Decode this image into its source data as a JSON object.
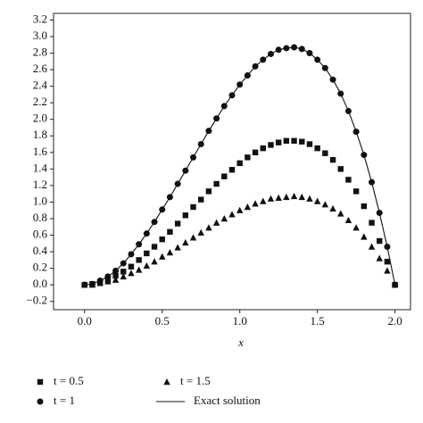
{
  "chart_data": {
    "type": "line",
    "x_label": "x",
    "x": [
      0,
      0.05,
      0.1,
      0.15,
      0.2,
      0.25,
      0.3,
      0.35,
      0.4,
      0.45,
      0.5,
      0.55,
      0.6,
      0.65,
      0.7,
      0.75,
      0.8,
      0.85,
      0.9,
      0.95,
      1.0,
      1.05,
      1.1,
      1.15,
      1.2,
      1.25,
      1.3,
      1.35,
      1.4,
      1.45,
      1.5,
      1.55,
      1.6,
      1.65,
      1.7,
      1.75,
      1.8,
      1.85,
      1.9,
      1.95,
      2.0
    ],
    "series": [
      {
        "name": "t = 0.5",
        "color": "#111111",
        "marker": "square",
        "values": [
          0,
          0.01,
          0.03,
          0.06,
          0.11,
          0.16,
          0.22,
          0.3,
          0.38,
          0.46,
          0.55,
          0.64,
          0.74,
          0.84,
          0.94,
          1.03,
          1.13,
          1.22,
          1.31,
          1.39,
          1.47,
          1.54,
          1.6,
          1.65,
          1.69,
          1.72,
          1.74,
          1.74,
          1.73,
          1.7,
          1.65,
          1.59,
          1.51,
          1.4,
          1.27,
          1.13,
          0.95,
          0.75,
          0.53,
          0.28,
          0
        ]
      },
      {
        "name": "t = 1",
        "color": "#111111",
        "marker": "circle",
        "values": [
          0,
          0.01,
          0.05,
          0.1,
          0.17,
          0.26,
          0.37,
          0.49,
          0.62,
          0.76,
          0.91,
          1.06,
          1.22,
          1.38,
          1.54,
          1.7,
          1.86,
          2.01,
          2.16,
          2.29,
          2.42,
          2.53,
          2.64,
          2.72,
          2.79,
          2.84,
          2.86,
          2.87,
          2.85,
          2.8,
          2.72,
          2.62,
          2.48,
          2.31,
          2.1,
          1.85,
          1.57,
          1.24,
          0.87,
          0.46,
          0
        ]
      },
      {
        "name": "t = 1.5",
        "color": "#111111",
        "marker": "triangle",
        "values": [
          0,
          0.0,
          0.02,
          0.04,
          0.06,
          0.1,
          0.14,
          0.18,
          0.23,
          0.28,
          0.34,
          0.39,
          0.45,
          0.51,
          0.57,
          0.63,
          0.69,
          0.75,
          0.8,
          0.85,
          0.9,
          0.94,
          0.98,
          1.01,
          1.04,
          1.05,
          1.06,
          1.07,
          1.06,
          1.04,
          1.01,
          0.97,
          0.92,
          0.86,
          0.78,
          0.69,
          0.58,
          0.46,
          0.32,
          0.17,
          0
        ]
      },
      {
        "name": "Exact solution",
        "color": "#111111",
        "values": [
          0,
          0.01,
          0.05,
          0.1,
          0.17,
          0.26,
          0.37,
          0.49,
          0.62,
          0.76,
          0.91,
          1.06,
          1.22,
          1.38,
          1.54,
          1.7,
          1.86,
          2.01,
          2.16,
          2.29,
          2.42,
          2.53,
          2.64,
          2.72,
          2.79,
          2.84,
          2.86,
          2.87,
          2.85,
          2.8,
          2.72,
          2.62,
          2.48,
          2.31,
          2.1,
          1.85,
          1.57,
          1.24,
          0.87,
          0.46,
          0
        ]
      }
    ],
    "xlim": [
      -0.2,
      2.1
    ],
    "xticks": [
      {
        "value": 0,
        "label": "0.0"
      },
      0.5,
      {
        "value": 1,
        "label": "1.0"
      },
      1.5,
      {
        "value": 2,
        "label": "2.0"
      }
    ],
    "ylim": [
      -0.3,
      3.28
    ],
    "yticks": [
      {
        "value": -0.2,
        "label": "−0.2"
      },
      {
        "value": 0,
        "label": "0.0"
      },
      0.2,
      0.4,
      0.6,
      0.8,
      {
        "value": 1,
        "label": "1.0"
      },
      1.2,
      1.4,
      1.6,
      1.8,
      {
        "value": 2,
        "label": "2.0"
      },
      2.2,
      2.4,
      2.6,
      2.8,
      {
        "value": 3,
        "label": "3.0"
      },
      3.2
    ],
    "grid": false,
    "legend": "bottom"
  }
}
